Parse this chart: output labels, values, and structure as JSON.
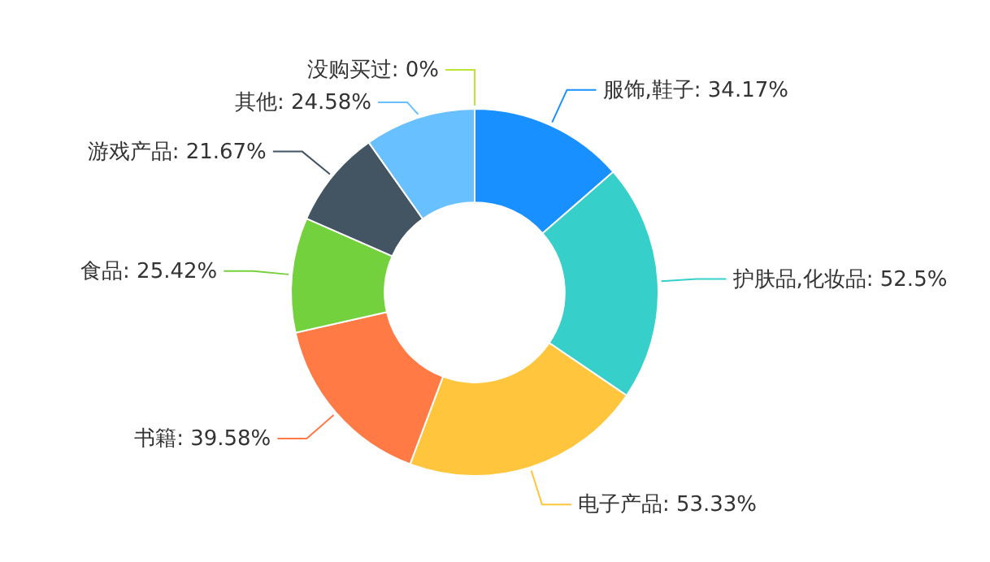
{
  "chart_data": {
    "type": "donut",
    "categories": [
      "服饰,鞋子",
      "护肤品,化妆品",
      "电子产品",
      "书籍",
      "食品",
      "游戏产品",
      "其他",
      "没购买过"
    ],
    "values": [
      34.17,
      52.5,
      53.33,
      39.58,
      25.42,
      21.67,
      24.58,
      0
    ],
    "value_labels": [
      ": 34.17%",
      ": 52.5%",
      ": 53.33%",
      ": 39.58%",
      ": 25.42%",
      ": 21.67%",
      ": 24.58%",
      ": 0%"
    ],
    "colors": [
      "#1890ff",
      "#36cfc9",
      "#ffc53d",
      "#ff7a45",
      "#73d13d",
      "#435563",
      "#69c0ff",
      "#bae637"
    ],
    "legend": false
  }
}
